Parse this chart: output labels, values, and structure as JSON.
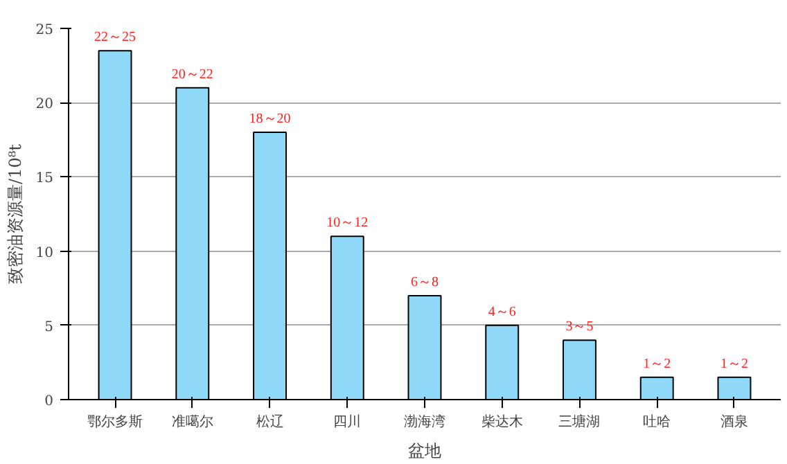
{
  "chart_data": {
    "type": "bar",
    "xlabel": "盆地",
    "ylabel": "致密油资源量/10⁸t",
    "categories": [
      "鄂尔多斯",
      "准噶尔",
      "松辽",
      "四川",
      "渤海湾",
      "柴达木",
      "三塘湖",
      "吐哈",
      "酒泉"
    ],
    "values": [
      23.5,
      21,
      18,
      11,
      7,
      5,
      4,
      1.5,
      1.5
    ],
    "annotations": [
      {
        "text": "22～25",
        "x": "鄂尔多斯",
        "y": 23.5
      },
      {
        "text": "20～22",
        "x": "准噶尔",
        "y": 21
      },
      {
        "text": "18～20",
        "x": "松辽",
        "y": 18
      },
      {
        "text": "10～12",
        "x": "四川",
        "y": 11
      },
      {
        "text": "6～8",
        "x": "渤海湾",
        "y": 7
      },
      {
        "text": "4～6",
        "x": "柴达木",
        "y": 5
      },
      {
        "text": "3～5",
        "x": "三塘湖",
        "y": 4
      },
      {
        "text": "1～2",
        "x": "吐哈",
        "y": 1.5
      },
      {
        "text": "1～2",
        "x": "酒泉",
        "y": 1.5
      }
    ],
    "color": "#8fd8f8",
    "ylim": [
      0,
      25
    ],
    "yticks": [
      0,
      5,
      10,
      15,
      20,
      25
    ],
    "grid": "y"
  }
}
